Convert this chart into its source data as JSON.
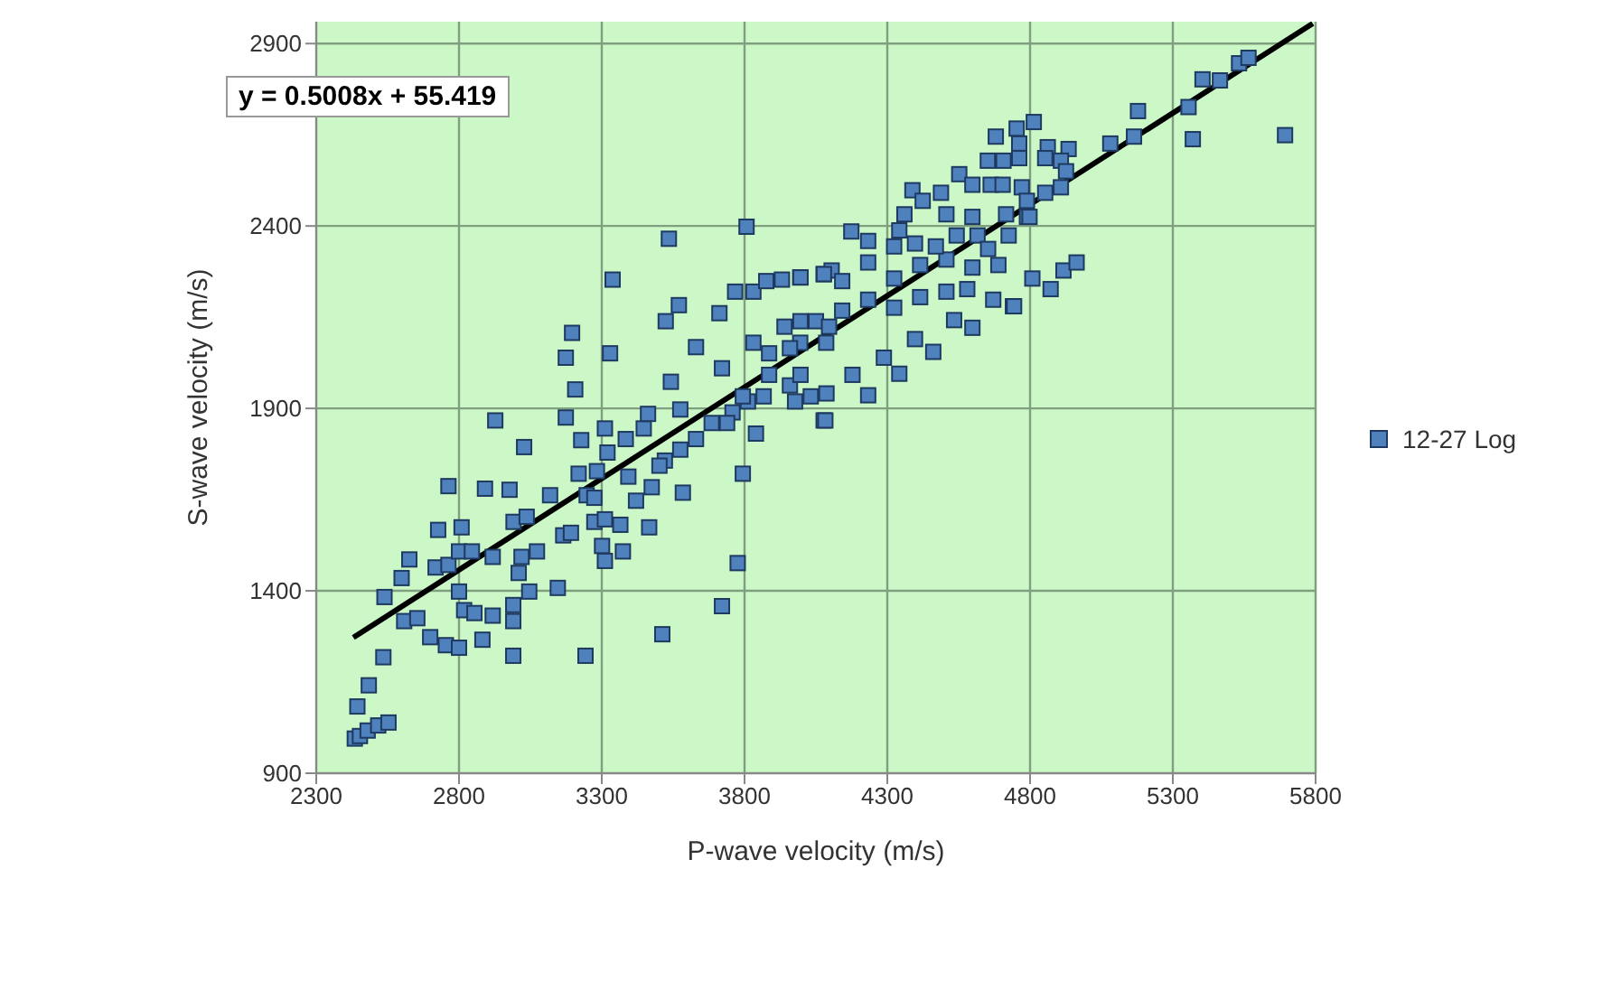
{
  "chart_data": {
    "type": "scatter",
    "xlabel": "P-wave velocity (m/s)",
    "ylabel": "S-wave velocity (m/s)",
    "xlim": [
      2300,
      5800
    ],
    "xticks": [
      2300,
      2800,
      3300,
      3800,
      4300,
      4800,
      5300,
      5800
    ],
    "ylim": [
      900,
      2960
    ],
    "yticks": [
      900,
      1400,
      1900,
      2400,
      2900
    ],
    "grid": true,
    "legend": "right",
    "marker": "square",
    "annotations": [
      "y = 0.5008x + 55.419"
    ],
    "series": [
      {
        "name": "12-27 Log",
        "color": "#4f81bd",
        "x": [
          2435,
          2453,
          2480,
          2517,
          2553,
          2444,
          2484,
          2535,
          2539,
          2599,
          2626,
          2608,
          2654,
          2699,
          2754,
          2800,
          2727,
          2809,
          2718,
          2763,
          2800,
          2845,
          2800,
          2818,
          2854,
          2882,
          2918,
          2990,
          2990,
          2990,
          3046,
          3009,
          3019,
          3073,
          2991,
          3037,
          2918,
          2763,
          2891,
          2977,
          3119,
          3146,
          3165,
          3192,
          3243,
          3219,
          3247,
          3274,
          3274,
          3311,
          3365,
          3301,
          3311,
          3374,
          3466,
          3512,
          3420,
          3283,
          3320,
          3384,
          3447,
          3393,
          3475,
          3584,
          3521,
          3575,
          3630,
          3685,
          3758,
          3812,
          3867,
          3840,
          3794,
          3776,
          3721,
          2927,
          3028,
          3174,
          3228,
          3311,
          3174,
          3207,
          3196,
          3329,
          3338,
          3535,
          3570,
          3524,
          3630,
          3712,
          3721,
          3542,
          3575,
          3462,
          3807,
          3767,
          3831,
          3876,
          3931,
          3995,
          4077,
          3831,
          3886,
          3940,
          3995,
          4050,
          4086,
          3886,
          3959,
          4032,
          4077,
          3794,
          3739,
          3502,
          3996,
          3959,
          3996,
          3977,
          4087,
          4083,
          4178,
          4233,
          4288,
          4342,
          4397,
          4461,
          4534,
          4598,
          4096,
          4142,
          4233,
          4324,
          4415,
          4507,
          4580,
          4671,
          4740,
          4105,
          4142,
          4233,
          4324,
          4415,
          4507,
          4598,
          4689,
          3996,
          4078,
          4174,
          4233,
          4324,
          4397,
          4470,
          4543,
          4616,
          4653,
          4725,
          4342,
          4360,
          4507,
          4598,
          4716,
          4789,
          4808,
          4872,
          4917,
          4963,
          4744,
          4388,
          4424,
          4488,
          4552,
          4598,
          4662,
          4704,
          4652,
          4707,
          4762,
          4680,
          4753,
          4813,
          4762,
          4862,
          4935,
          4853,
          4908,
          4926,
          4771,
          4853,
          4908,
          4789,
          4798,
          5081,
          5164,
          5178,
          5355,
          5370,
          5404,
          5465,
          5532,
          5565,
          5693
        ],
        "values": [
          995,
          1002,
          1017,
          1031,
          1039,
          1083,
          1141,
          1218,
          1383,
          1435,
          1486,
          1317,
          1325,
          1273,
          1251,
          1244,
          1567,
          1574,
          1464,
          1471,
          1508,
          1508,
          1398,
          1347,
          1339,
          1266,
          1332,
          1317,
          1361,
          1222,
          1398,
          1449,
          1493,
          1508,
          1589,
          1603,
          1493,
          1687,
          1680,
          1677,
          1662,
          1408,
          1552,
          1559,
          1222,
          1721,
          1662,
          1655,
          1589,
          1596,
          1581,
          1523,
          1482,
          1508,
          1574,
          1281,
          1647,
          1728,
          1779,
          1816,
          1845,
          1713,
          1684,
          1669,
          1757,
          1787,
          1816,
          1860,
          1889,
          1919,
          1933,
          1831,
          1721,
          1476,
          1358,
          1867,
          1794,
          1875,
          1813,
          1845,
          2039,
          1952,
          2107,
          2051,
          2253,
          2365,
          2183,
          2139,
          2068,
          2161,
          2010,
          1973,
          1897,
          1885,
          2398,
          2220,
          2220,
          2249,
          2253,
          2259,
          2268,
          2080,
          2051,
          2124,
          2080,
          2139,
          2080,
          1992,
          1963,
          1933,
          1867,
          1933,
          1860,
          1743,
          2139,
          2065,
          1992,
          1919,
          1941,
          1867,
          1992,
          1936,
          2039,
          1995,
          2090,
          2055,
          2142,
          2121,
          2124,
          2168,
          2198,
          2176,
          2205,
          2220,
          2227,
          2198,
          2180,
          2278,
          2249,
          2300,
          2256,
          2293,
          2308,
          2286,
          2293,
          2259,
          2268,
          2385,
          2359,
          2344,
          2352,
          2344,
          2374,
          2374,
          2337,
          2374,
          2388,
          2432,
          2432,
          2425,
          2432,
          2425,
          2256,
          2227,
          2278,
          2300,
          2180,
          2498,
          2469,
          2491,
          2542,
          2513,
          2513,
          2513,
          2579,
          2579,
          2586,
          2645,
          2667,
          2685,
          2626,
          2616,
          2611,
          2586,
          2579,
          2550,
          2506,
          2491,
          2506,
          2469,
          2425,
          2626,
          2645,
          2715,
          2726,
          2638,
          2802,
          2799,
          2846,
          2861,
          2649
        ]
      },
      {
        "type": "line",
        "color": "#000000",
        "marker": "none",
        "x": [
          2430,
          5790
        ],
        "values": [
          1272,
          2955
        ]
      }
    ]
  }
}
